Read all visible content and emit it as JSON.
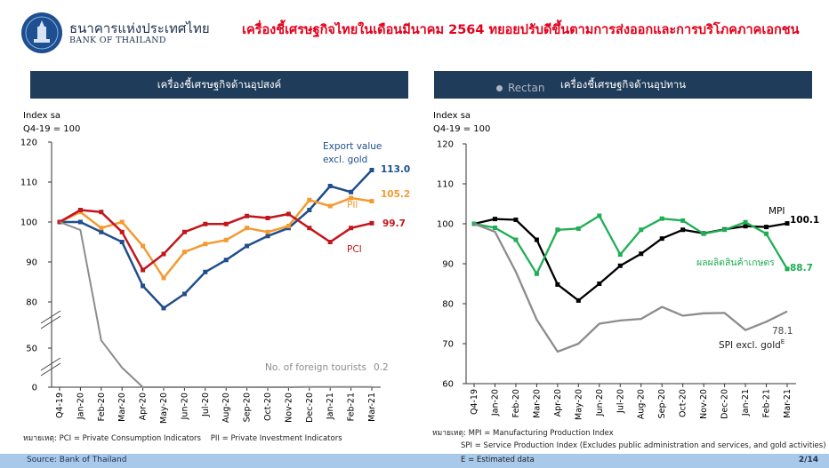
{
  "header": {
    "bank_name_th": "ธนาคารแห่งประเทศไทย",
    "bank_name_en": "BANK OF THAILAND",
    "headline": "เครื่องชี้เศรษฐกิจไทยในเดือนมีนาคม 2564 ทยอยปรับดีขึ้นตามการส่งออกและการบริโภคภาคเอกชน"
  },
  "colors": {
    "navy": "#1f3c5a",
    "headline_red": "#e3001b",
    "export_blue": "#1f4e8c",
    "pii_orange": "#f39a32",
    "pci_red": "#c0161c",
    "tourists_gray": "#8c8c8c",
    "mpi_black": "#000000",
    "agri_green": "#1fae55",
    "spi_gray": "#8c8c8c"
  },
  "left_panel": {
    "title": "เครื่องชี้เศรษฐกิจด้านอุปสงค์",
    "ylabel_line1": "Index sa",
    "ylabel_line2": "Q4-19 = 100",
    "footnote_prefix": "หมายเหตุ:",
    "footnote": "PCI = Private Consumption Indicators    PII = Private Investment Indicators"
  },
  "right_panel": {
    "title": "เครื่องชี้เศรษฐกิจด้านอุปทาน",
    "ghost_label": "Rectan",
    "ylabel_line1": "Index sa",
    "ylabel_line2": "Q4-19 = 100",
    "footnote_prefix": "หมายเหตุ:",
    "footnote1": "MPI = Manufacturing Production Index",
    "footnote2": "SPI = Service Production Index (Excludes public administration and services, and gold activities)",
    "footnote3": "E = Estimated data"
  },
  "footer": {
    "source": "Source: Bank of Thailand",
    "page": "2/14"
  },
  "chart_data": [
    {
      "type": "line",
      "categories": [
        "Q4-19",
        "Jan-20",
        "Feb-20",
        "Mar-20",
        "Apr-20",
        "May-20",
        "Jun-20",
        "Jul-20",
        "Aug-20",
        "Sep-20",
        "Oct-20",
        "Nov-20",
        "Dec-20",
        "Jan-21",
        "Feb-21",
        "Mar-21"
      ],
      "ylabel": "Index sa",
      "ylim": [
        0,
        120
      ],
      "axis_break": true,
      "yticks": [
        0,
        50,
        80,
        90,
        100,
        110,
        120
      ],
      "series": [
        {
          "name": "Export value excl. gold",
          "label_lines": [
            "Export value",
            "excl. gold"
          ],
          "end_label": "113.0",
          "color": "#1f4e8c",
          "values": [
            100,
            100,
            97.5,
            95,
            84,
            76,
            82,
            87.5,
            90.5,
            94,
            96.5,
            98.5,
            103,
            109,
            107.5,
            113.0
          ]
        },
        {
          "name": "PII",
          "end_label": "105.2",
          "color": "#f39a32",
          "values": [
            100,
            102.5,
            98.5,
            100,
            94,
            86,
            92.5,
            94.5,
            95.5,
            98.5,
            97.5,
            99,
            105.5,
            104,
            106,
            105.2
          ]
        },
        {
          "name": "PCI",
          "end_label": "99.7",
          "color": "#c0161c",
          "values": [
            100,
            103,
            102.5,
            97.5,
            88,
            92,
            97.5,
            99.5,
            99.5,
            101.5,
            101,
            102,
            98.5,
            95,
            98.5,
            99.7
          ]
        },
        {
          "name": "No. of foreign tourists",
          "end_label": "0.2",
          "color": "#8c8c8c",
          "values": [
            100,
            98,
            55,
            25,
            0,
            0,
            0,
            0,
            0,
            0,
            0,
            0,
            0.3,
            0.2,
            0.2,
            0.2
          ]
        }
      ]
    },
    {
      "type": "line",
      "categories": [
        "Q4-19",
        "Jan-20",
        "Feb-20",
        "Mar-20",
        "Apr-20",
        "May-20",
        "Jun-20",
        "Jul-20",
        "Aug-20",
        "Sep-20",
        "Oct-20",
        "Nov-20",
        "Dec-20",
        "Jan-21",
        "Feb-21",
        "Mar-21"
      ],
      "ylabel": "Index sa",
      "ylim": [
        60,
        120
      ],
      "yticks": [
        60,
        70,
        80,
        90,
        100,
        110,
        120
      ],
      "series": [
        {
          "name": "MPI",
          "end_label": "100.1",
          "color": "#000000",
          "values": [
            100,
            101.2,
            101,
            96,
            84.8,
            80.8,
            85,
            89.5,
            92.5,
            96.3,
            98.5,
            97.6,
            98.6,
            99.4,
            99.2,
            100.1
          ]
        },
        {
          "name": "ผลผลิตสินค้าเกษตร",
          "end_label": "88.7",
          "color": "#1fae55",
          "values": [
            100,
            99,
            96,
            87.5,
            98.5,
            98.8,
            102,
            92.3,
            98.5,
            101.3,
            100.8,
            97.5,
            98.5,
            100.4,
            97.5,
            88.7
          ]
        },
        {
          "name": "SPI excl. gold",
          "label_sup": "E",
          "end_label": "78.1",
          "color": "#8c8c8c",
          "values": [
            100,
            98,
            88,
            76,
            68,
            70,
            75,
            75.8,
            76.2,
            79.2,
            77,
            77.6,
            77.7,
            73.4,
            75.5,
            78.1
          ]
        }
      ]
    }
  ]
}
